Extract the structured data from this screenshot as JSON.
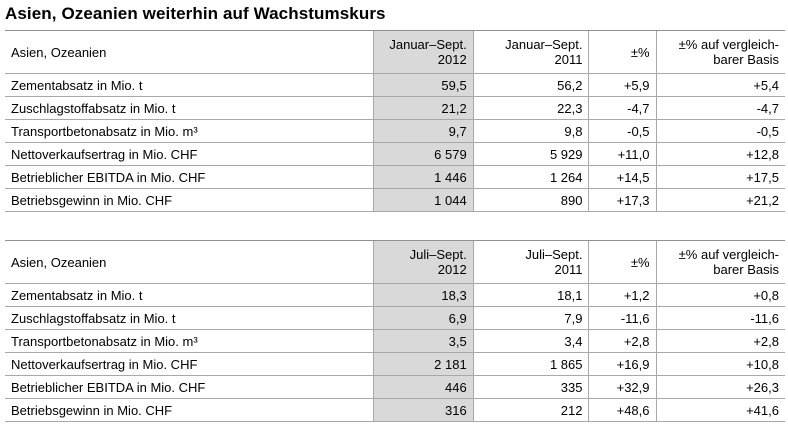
{
  "title": "Asien, Ozeanien weiterhin auf Wachstumskurs",
  "tables": [
    {
      "header": {
        "region": "Asien, Ozeanien",
        "current_line1": "Januar–Sept.",
        "current_line2": "2012",
        "prior_line1": "Januar–Sept.",
        "prior_line2": "2011",
        "change": "±%",
        "comparable_line1": "±% auf vergleich-",
        "comparable_line2": "barer Basis"
      },
      "rows": [
        {
          "label": "Zementabsatz in Mio. t",
          "current": "59,5",
          "prior": "56,2",
          "change": "+5,9",
          "comparable": "+5,4"
        },
        {
          "label": "Zuschlagstoffabsatz in Mio. t",
          "current": "21,2",
          "prior": "22,3",
          "change": "-4,7",
          "comparable": "-4,7"
        },
        {
          "label": "Transportbetonabsatz in Mio. m³",
          "current": "9,7",
          "prior": "9,8",
          "change": "-0,5",
          "comparable": "-0,5"
        },
        {
          "label": "Nettoverkaufsertrag in Mio. CHF",
          "current": "6 579",
          "prior": "5 929",
          "change": "+11,0",
          "comparable": "+12,8"
        },
        {
          "label": "Betrieblicher EBITDA in Mio. CHF",
          "current": "1 446",
          "prior": "1 264",
          "change": "+14,5",
          "comparable": "+17,5"
        },
        {
          "label": "Betriebsgewinn in Mio. CHF",
          "current": "1 044",
          "prior": "890",
          "change": "+17,3",
          "comparable": "+21,2"
        }
      ]
    },
    {
      "header": {
        "region": "Asien, Ozeanien",
        "current_line1": "Juli–Sept.",
        "current_line2": "2012",
        "prior_line1": "Juli–Sept.",
        "prior_line2": "2011",
        "change": "±%",
        "comparable_line1": "±% auf vergleich-",
        "comparable_line2": "barer Basis"
      },
      "rows": [
        {
          "label": "Zementabsatz in Mio. t",
          "current": "18,3",
          "prior": "18,1",
          "change": "+1,2",
          "comparable": "+0,8"
        },
        {
          "label": "Zuschlagstoffabsatz in Mio. t",
          "current": "6,9",
          "prior": "7,9",
          "change": "-11,6",
          "comparable": "-11,6"
        },
        {
          "label": "Transportbetonabsatz in Mio. m³",
          "current": "3,5",
          "prior": "3,4",
          "change": "+2,8",
          "comparable": "+2,8"
        },
        {
          "label": "Nettoverkaufsertrag in Mio. CHF",
          "current": "2 181",
          "prior": "1 865",
          "change": "+16,9",
          "comparable": "+10,8"
        },
        {
          "label": "Betrieblicher EBITDA in Mio. CHF",
          "current": "446",
          "prior": "335",
          "change": "+32,9",
          "comparable": "+26,3"
        },
        {
          "label": "Betriebsgewinn in Mio. CHF",
          "current": "316",
          "prior": "212",
          "change": "+48,6",
          "comparable": "+41,6"
        }
      ]
    }
  ]
}
